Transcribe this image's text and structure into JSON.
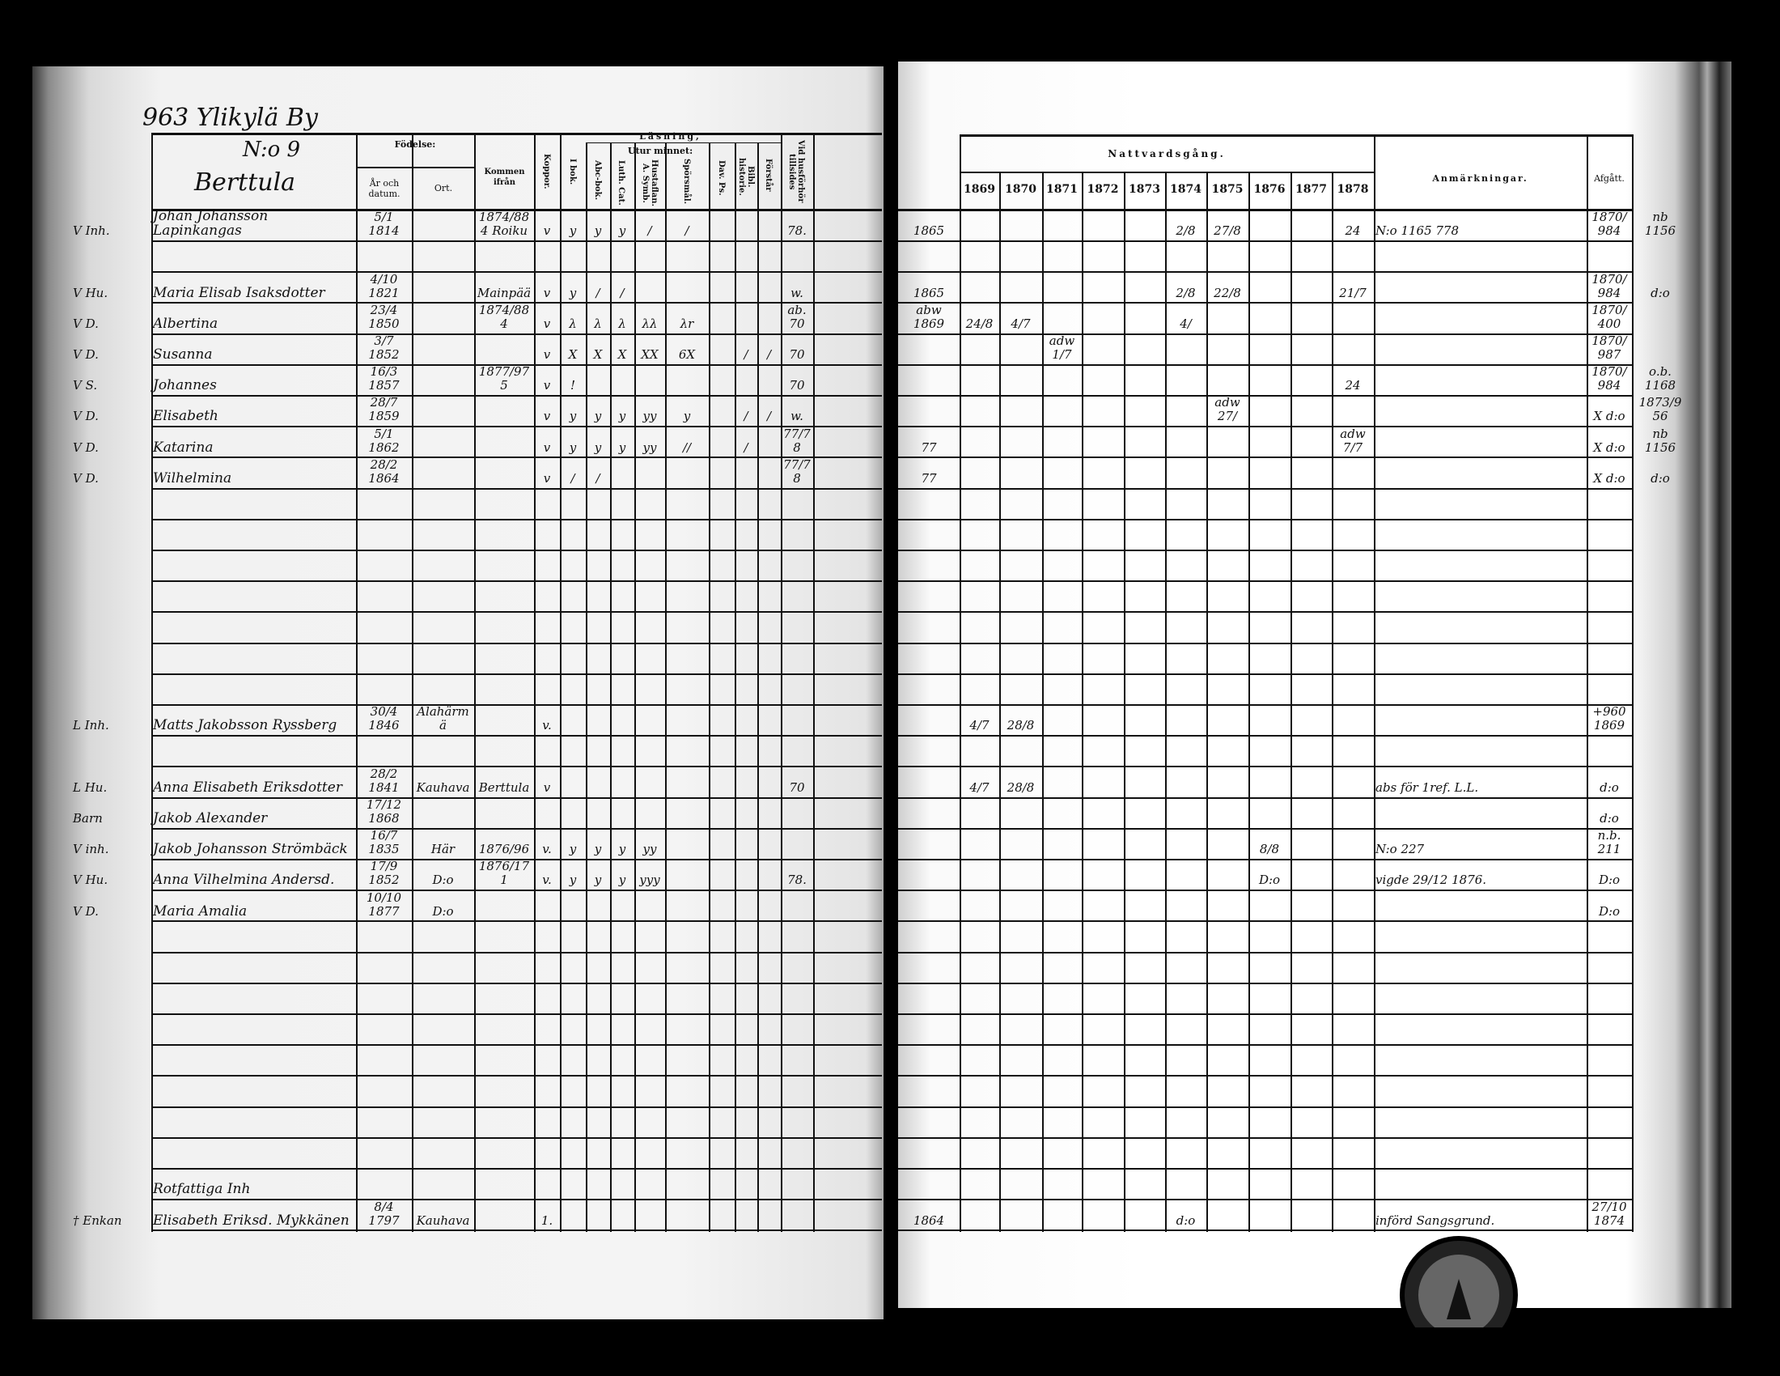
{
  "heading": {
    "village": "963 Ylikylä By",
    "number": "N:o 9",
    "farm": "Berttula"
  },
  "left_header": {
    "fodelse": "Födelse:",
    "ar": "År och datum.",
    "ort": "Ort.",
    "kommen": "Kommen ifrån",
    "koppor": "Koppor.",
    "lasning": "Läsning,",
    "utur_minnet": "Utur minnet:",
    "ibok": "I bok.",
    "abc": "Abc-bok.",
    "luth": "Luth. Cat.",
    "husf": "Hustaflan. A. Symb.",
    "spors": "Spörsmål.",
    "dav": "Dav. Ps.",
    "bibl": "Bibl. historie.",
    "forstar": "Förstår",
    "vid": "Vid husförhör tillsides"
  },
  "right_header": {
    "nattvard": "Nattvardsgång.",
    "years": [
      "1869",
      "1870",
      "1871",
      "1872",
      "1873",
      "1874",
      "1875",
      "1876",
      "1877",
      "1878"
    ],
    "anm": "Anmärkningar.",
    "afgatt": "Afgått."
  },
  "rows": [
    {
      "mark": "V Inh.",
      "name": "Johan Johansson Lapinkangas",
      "born": "5/1 1814",
      "kommen": "1874/884 Roiku",
      "koppor": "v",
      "ibok": "y",
      "abc": "y",
      "luth": "y",
      "husf": "/",
      "spors": "/",
      "vid": "78.",
      "pre": "1865",
      "n": {
        "1874": "2/8",
        "1875": "27/8",
        "1878": "24"
      },
      "anm": "N:o 1165 778",
      "afgatt": "1870/984",
      "note": "nb 1156"
    },
    {},
    {
      "mark": "V Hu.",
      "name": "Maria Elisab Isaksdotter",
      "born": "4/10 1821",
      "kommen": "Mainpää",
      "koppor": "v",
      "ibok": "y",
      "abc": "/",
      "luth": "/",
      "vid": "w.",
      "pre": "1865",
      "n": {
        "1874": "2/8",
        "1875": "22/8",
        "1878": "21/7"
      },
      "afgatt": "1870/984",
      "note": "d:o"
    },
    {
      "mark": "V D.",
      "name": "Albertina",
      "born": "23/4 1850",
      "kommen": "1874/884",
      "koppor": "v",
      "ibok": "λ",
      "abc": "λ",
      "luth": "λ",
      "husf": "λλ",
      "spors": "λr",
      "vid": "ab. 70",
      "pre": "abw 1869",
      "n": {
        "1869": "24/8",
        "1870": "4/7",
        "1874": "4/"
      },
      "afgatt": "1870/400"
    },
    {
      "mark": "V D.",
      "name": "Susanna",
      "born": "3/7 1852",
      "koppor": "v",
      "ibok": "X",
      "abc": "X",
      "luth": "X",
      "husf": "XX",
      "spors": "6X",
      "bibl": "/",
      "forstar": "/",
      "vid": "70",
      "n": {
        "1871": "adw 1/7"
      },
      "afgatt": "1870/987"
    },
    {
      "mark": "V S.",
      "name": "Johannes",
      "born": "16/3 1857",
      "kommen": "1877/975",
      "koppor": "v",
      "ibok": "!",
      "vid": "70",
      "n": {
        "1878": "24"
      },
      "afgatt": "1870/984",
      "note": "o.b. 1168"
    },
    {
      "mark": "V D.",
      "name": "Elisabeth",
      "born": "28/7 1859",
      "koppor": "v",
      "ibok": "y",
      "abc": "y",
      "luth": "y",
      "husf": "yy",
      "spors": "y",
      "bibl": "/",
      "forstar": "/",
      "vid": "w.",
      "n": {
        "1875": "adw 27/"
      },
      "afgatt": "X d:o",
      "note": "1873/956"
    },
    {
      "mark": "V D.",
      "name": "Katarina",
      "born": "5/1 1862",
      "koppor": "v",
      "ibok": "y",
      "abc": "y",
      "luth": "y",
      "husf": "yy",
      "spors": "//",
      "bibl": "/",
      "vid": "77/78",
      "pre": "77",
      "n": {
        "1878": "adw 7/7"
      },
      "afgatt": "X d:o",
      "note": "nb 1156"
    },
    {
      "mark": "V D.",
      "name": "Wilhelmina",
      "born": "28/2 1864",
      "koppor": "v",
      "ibok": "/",
      "abc": "/",
      "vid": "77/78",
      "pre": "77",
      "afgatt": "X d:o",
      "note": "d:o"
    },
    {},
    {},
    {},
    {},
    {},
    {},
    {},
    {
      "mark": "L Inh.",
      "name": "Matts Jakobsson Ryssberg",
      "born": "30/4 1846",
      "ort": "Alahärmä",
      "koppor": "v.",
      "n": {
        "1869": "4/7",
        "1870": "28/8"
      },
      "afgatt": "+960 1869"
    },
    {},
    {
      "mark": "L Hu.",
      "name": "Anna Elisabeth Eriksdotter",
      "born": "28/2 1841",
      "ort": "Kauhava",
      "kommen": "Berttula",
      "koppor": "v",
      "vid": "70",
      "n": {
        "1869": "4/7",
        "1870": "28/8"
      },
      "anm": "abs för 1ref. L.L.",
      "afgatt": "d:o"
    },
    {
      "mark": "Barn",
      "name": "Jakob Alexander",
      "born": "17/12 1868",
      "afgatt": "d:o"
    },
    {
      "mark": "V inh.",
      "name": "Jakob Johansson Strömbäck",
      "born": "16/7 1835",
      "ort": "Här",
      "kommen": "1876/96",
      "koppor": "v.",
      "ibok": "y",
      "abc": "y",
      "luth": "y",
      "husf": "yy",
      "n": {
        "1876": "8/8"
      },
      "anm": "N:o 227",
      "afgatt": "n.b. 211"
    },
    {
      "mark": "V Hu.",
      "name": "Anna Vilhelmina Andersd.",
      "born": "17/9 1852",
      "ort": "D:o",
      "kommen": "1876/171",
      "koppor": "v.",
      "ibok": "y",
      "abc": "y",
      "luth": "y",
      "husf": "yyy",
      "vid": "78.",
      "n": {
        "1876": "D:o"
      },
      "anm": "vigde 29/12 1876.",
      "afgatt": "D:o"
    },
    {
      "mark": "V D.",
      "name": "Maria Amalia",
      "born": "10/10 1877",
      "ort": "D:o",
      "afgatt": "D:o"
    },
    {},
    {},
    {},
    {},
    {},
    {},
    {},
    {},
    {
      "name": "Rotfattiga Inh"
    },
    {
      "mark": "† Enkan",
      "name": "Elisabeth Eriksd. Mykkänen",
      "born": "8/4 1797",
      "ort": "Kauhava",
      "koppor": "1.",
      "pre": "1864",
      "n": {
        "1874": "d:o"
      },
      "anm": "införd Sangsgrund.",
      "afgatt": "27/10 1874"
    }
  ]
}
